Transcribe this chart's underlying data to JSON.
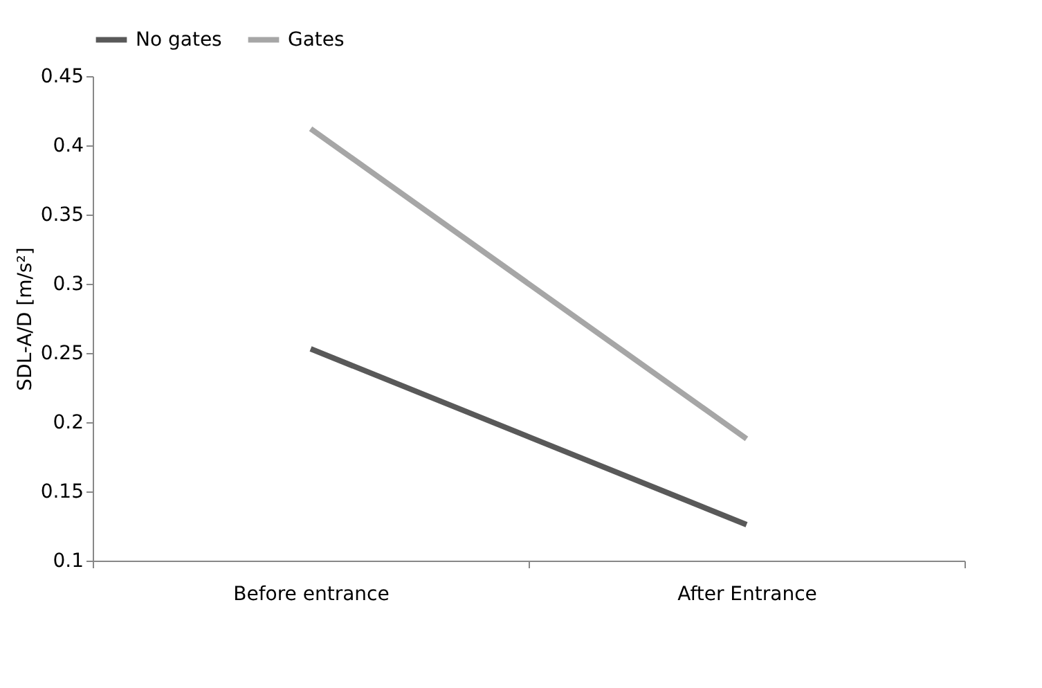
{
  "chart_data": {
    "type": "line",
    "ylabel": "SDL-A/D [m/s²]",
    "categories": [
      "Before entrance",
      "After Entrance"
    ],
    "series": [
      {
        "name": "No gates",
        "color": "#595959",
        "values": [
          0.253,
          0.126
        ]
      },
      {
        "name": "Gates",
        "color": "#a6a6a6",
        "values": [
          0.412,
          0.188
        ]
      }
    ],
    "ylim": [
      0.1,
      0.45
    ],
    "yticks": [
      0.1,
      0.15,
      0.2,
      0.25,
      0.3,
      0.35,
      0.4,
      0.45
    ],
    "grid": false,
    "legend": "top",
    "marker": "none",
    "line_style": "solid"
  }
}
